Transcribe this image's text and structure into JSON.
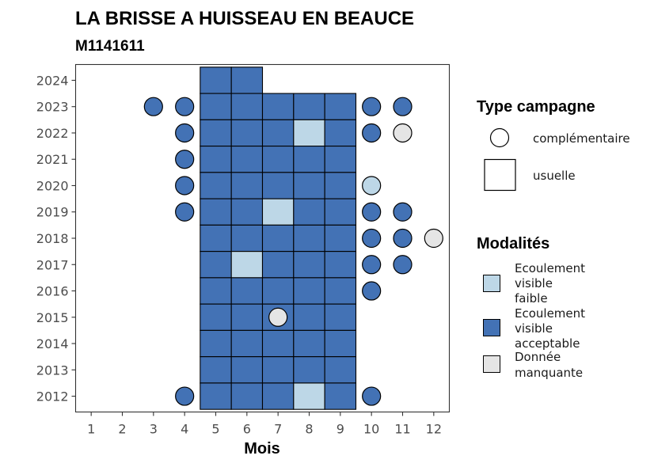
{
  "colors": {
    "faible": "#BDD7E7",
    "acceptable": "#4372B5",
    "manquante": "#E5E5E5",
    "border": "#000000",
    "panel_border": "#333333"
  },
  "chart_data": {
    "type": "heatmap",
    "title": "LA BRISSE A HUISSEAU EN BEAUCE",
    "subtitle": "M1141611",
    "xlabel": "Mois",
    "ylabel": "",
    "x_ticks": [
      1,
      2,
      3,
      4,
      5,
      6,
      7,
      8,
      9,
      10,
      11,
      12
    ],
    "y_ticks": [
      2012,
      2013,
      2014,
      2015,
      2016,
      2017,
      2018,
      2019,
      2020,
      2021,
      2022,
      2023,
      2024
    ],
    "xlim": [
      0.5,
      12.5
    ],
    "ylim": [
      2011.4,
      2024.6
    ],
    "grid": false,
    "legend_position": "right",
    "legend_type": {
      "title": "Type campagne",
      "items": [
        {
          "shape": "circle",
          "label": "complémentaire"
        },
        {
          "shape": "square",
          "label": "usuelle"
        }
      ]
    },
    "legend_modalites": {
      "title": "Modalités",
      "items": [
        {
          "key": "faible",
          "lines": [
            "Ecoulement",
            "visible",
            "faible"
          ]
        },
        {
          "key": "acceptable",
          "lines": [
            "Ecoulement",
            "visible",
            "acceptable"
          ]
        },
        {
          "key": "manquante",
          "lines": [
            "Donnée",
            "manquante"
          ]
        }
      ]
    },
    "usuelle": [
      {
        "year": 2024,
        "month": 5,
        "status": "acceptable"
      },
      {
        "year": 2024,
        "month": 6,
        "status": "acceptable"
      },
      {
        "year": 2023,
        "month": 5,
        "status": "acceptable"
      },
      {
        "year": 2023,
        "month": 6,
        "status": "acceptable"
      },
      {
        "year": 2023,
        "month": 7,
        "status": "acceptable"
      },
      {
        "year": 2023,
        "month": 8,
        "status": "acceptable"
      },
      {
        "year": 2023,
        "month": 9,
        "status": "acceptable"
      },
      {
        "year": 2022,
        "month": 5,
        "status": "acceptable"
      },
      {
        "year": 2022,
        "month": 6,
        "status": "acceptable"
      },
      {
        "year": 2022,
        "month": 7,
        "status": "acceptable"
      },
      {
        "year": 2022,
        "month": 8,
        "status": "faible"
      },
      {
        "year": 2022,
        "month": 9,
        "status": "acceptable"
      },
      {
        "year": 2021,
        "month": 5,
        "status": "acceptable"
      },
      {
        "year": 2021,
        "month": 6,
        "status": "acceptable"
      },
      {
        "year": 2021,
        "month": 7,
        "status": "acceptable"
      },
      {
        "year": 2021,
        "month": 8,
        "status": "acceptable"
      },
      {
        "year": 2021,
        "month": 9,
        "status": "acceptable"
      },
      {
        "year": 2020,
        "month": 5,
        "status": "acceptable"
      },
      {
        "year": 2020,
        "month": 6,
        "status": "acceptable"
      },
      {
        "year": 2020,
        "month": 7,
        "status": "acceptable"
      },
      {
        "year": 2020,
        "month": 8,
        "status": "acceptable"
      },
      {
        "year": 2020,
        "month": 9,
        "status": "acceptable"
      },
      {
        "year": 2019,
        "month": 5,
        "status": "acceptable"
      },
      {
        "year": 2019,
        "month": 6,
        "status": "acceptable"
      },
      {
        "year": 2019,
        "month": 7,
        "status": "faible"
      },
      {
        "year": 2019,
        "month": 8,
        "status": "acceptable"
      },
      {
        "year": 2019,
        "month": 9,
        "status": "acceptable"
      },
      {
        "year": 2018,
        "month": 5,
        "status": "acceptable"
      },
      {
        "year": 2018,
        "month": 6,
        "status": "acceptable"
      },
      {
        "year": 2018,
        "month": 7,
        "status": "acceptable"
      },
      {
        "year": 2018,
        "month": 8,
        "status": "acceptable"
      },
      {
        "year": 2018,
        "month": 9,
        "status": "acceptable"
      },
      {
        "year": 2017,
        "month": 5,
        "status": "acceptable"
      },
      {
        "year": 2017,
        "month": 6,
        "status": "faible"
      },
      {
        "year": 2017,
        "month": 7,
        "status": "acceptable"
      },
      {
        "year": 2017,
        "month": 8,
        "status": "acceptable"
      },
      {
        "year": 2017,
        "month": 9,
        "status": "acceptable"
      },
      {
        "year": 2016,
        "month": 5,
        "status": "acceptable"
      },
      {
        "year": 2016,
        "month": 6,
        "status": "acceptable"
      },
      {
        "year": 2016,
        "month": 7,
        "status": "acceptable"
      },
      {
        "year": 2016,
        "month": 8,
        "status": "acceptable"
      },
      {
        "year": 2016,
        "month": 9,
        "status": "acceptable"
      },
      {
        "year": 2015,
        "month": 5,
        "status": "acceptable"
      },
      {
        "year": 2015,
        "month": 6,
        "status": "acceptable"
      },
      {
        "year": 2015,
        "month": 7,
        "status": "acceptable"
      },
      {
        "year": 2015,
        "month": 8,
        "status": "acceptable"
      },
      {
        "year": 2015,
        "month": 9,
        "status": "acceptable"
      },
      {
        "year": 2014,
        "month": 5,
        "status": "acceptable"
      },
      {
        "year": 2014,
        "month": 6,
        "status": "acceptable"
      },
      {
        "year": 2014,
        "month": 7,
        "status": "acceptable"
      },
      {
        "year": 2014,
        "month": 8,
        "status": "acceptable"
      },
      {
        "year": 2014,
        "month": 9,
        "status": "acceptable"
      },
      {
        "year": 2013,
        "month": 5,
        "status": "acceptable"
      },
      {
        "year": 2013,
        "month": 6,
        "status": "acceptable"
      },
      {
        "year": 2013,
        "month": 7,
        "status": "acceptable"
      },
      {
        "year": 2013,
        "month": 8,
        "status": "acceptable"
      },
      {
        "year": 2013,
        "month": 9,
        "status": "acceptable"
      },
      {
        "year": 2012,
        "month": 5,
        "status": "acceptable"
      },
      {
        "year": 2012,
        "month": 6,
        "status": "acceptable"
      },
      {
        "year": 2012,
        "month": 7,
        "status": "acceptable"
      },
      {
        "year": 2012,
        "month": 8,
        "status": "faible"
      },
      {
        "year": 2012,
        "month": 9,
        "status": "acceptable"
      }
    ],
    "complementaire": [
      {
        "year": 2023,
        "month": 3,
        "status": "acceptable"
      },
      {
        "year": 2023,
        "month": 4,
        "status": "acceptable"
      },
      {
        "year": 2023,
        "month": 10,
        "status": "acceptable"
      },
      {
        "year": 2023,
        "month": 11,
        "status": "acceptable"
      },
      {
        "year": 2022,
        "month": 4,
        "status": "acceptable"
      },
      {
        "year": 2022,
        "month": 10,
        "status": "acceptable"
      },
      {
        "year": 2022,
        "month": 11,
        "status": "manquante"
      },
      {
        "year": 2021,
        "month": 4,
        "status": "acceptable"
      },
      {
        "year": 2020,
        "month": 4,
        "status": "acceptable"
      },
      {
        "year": 2020,
        "month": 10,
        "status": "faible"
      },
      {
        "year": 2019,
        "month": 4,
        "status": "acceptable"
      },
      {
        "year": 2019,
        "month": 10,
        "status": "acceptable"
      },
      {
        "year": 2019,
        "month": 11,
        "status": "acceptable"
      },
      {
        "year": 2018,
        "month": 10,
        "status": "acceptable"
      },
      {
        "year": 2018,
        "month": 11,
        "status": "acceptable"
      },
      {
        "year": 2018,
        "month": 12,
        "status": "manquante"
      },
      {
        "year": 2017,
        "month": 10,
        "status": "acceptable"
      },
      {
        "year": 2017,
        "month": 11,
        "status": "acceptable"
      },
      {
        "year": 2016,
        "month": 10,
        "status": "acceptable"
      },
      {
        "year": 2015,
        "month": 7,
        "status": "manquante"
      },
      {
        "year": 2012,
        "month": 4,
        "status": "acceptable"
      },
      {
        "year": 2012,
        "month": 10,
        "status": "acceptable"
      }
    ]
  }
}
